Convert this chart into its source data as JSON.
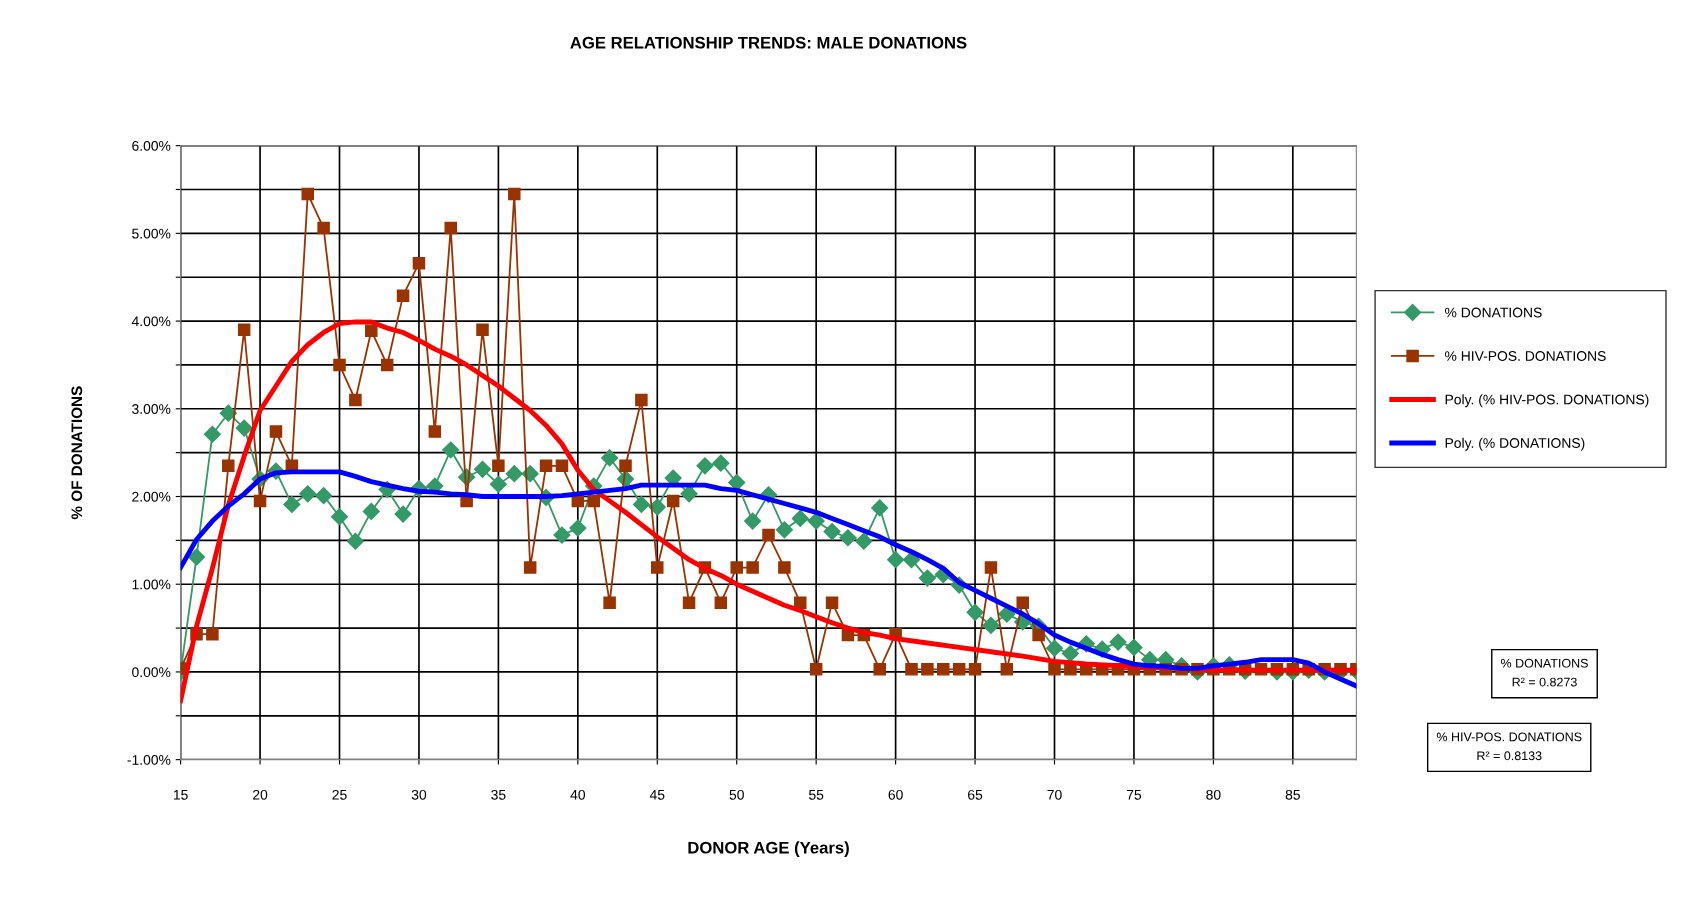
{
  "chart_data": {
    "type": "line",
    "title": "AGE RELATIONSHIP TRENDS: MALE DONATIONS",
    "xlabel": "DONOR AGE (Years)",
    "ylabel": "% OF DONATIONS",
    "x": [
      15,
      16,
      17,
      18,
      19,
      20,
      21,
      22,
      23,
      24,
      25,
      26,
      27,
      28,
      29,
      30,
      31,
      32,
      33,
      34,
      35,
      36,
      37,
      38,
      39,
      40,
      41,
      42,
      43,
      44,
      45,
      46,
      47,
      48,
      49,
      50,
      51,
      52,
      53,
      54,
      55,
      56,
      57,
      58,
      59,
      60,
      61,
      62,
      63,
      64,
      65,
      66,
      67,
      68,
      69,
      70,
      71,
      72,
      73,
      74,
      75,
      76,
      77,
      78,
      79,
      80,
      81,
      82,
      83,
      84,
      85,
      86,
      87,
      88,
      89
    ],
    "series": [
      {
        "name": "% DONATIONS",
        "color": "#339966",
        "marker": "diamond",
        "values": [
          0.0,
          1.31,
          2.71,
          2.95,
          2.78,
          2.2,
          2.29,
          1.91,
          2.03,
          2.01,
          1.77,
          1.49,
          1.83,
          2.08,
          1.8,
          2.09,
          2.12,
          2.53,
          2.22,
          2.31,
          2.14,
          2.26,
          2.26,
          1.99,
          1.56,
          1.64,
          2.12,
          2.44,
          2.2,
          1.91,
          1.88,
          2.21,
          2.03,
          2.35,
          2.38,
          2.16,
          1.72,
          2.02,
          1.62,
          1.75,
          1.72,
          1.6,
          1.53,
          1.49,
          1.87,
          1.28,
          1.28,
          1.07,
          1.11,
          0.99,
          0.68,
          0.53,
          0.66,
          0.57,
          0.52,
          0.27,
          0.21,
          0.32,
          0.26,
          0.34,
          0.28,
          0.14,
          0.14,
          0.07,
          0.0,
          0.07,
          0.08,
          0.01,
          null,
          0.0,
          0.0,
          0.02,
          0.0,
          0.0,
          0.01
        ]
      },
      {
        "name": "% HIV-POS. DONATIONS",
        "color": "#993300",
        "marker": "square",
        "values": [
          0.04,
          0.43,
          0.43,
          2.35,
          3.9,
          1.95,
          2.74,
          2.35,
          5.45,
          5.06,
          3.5,
          3.1,
          3.89,
          3.5,
          4.29,
          4.66,
          2.74,
          5.06,
          1.95,
          3.9,
          2.35,
          5.45,
          1.19,
          2.35,
          2.35,
          1.95,
          1.95,
          0.79,
          2.35,
          3.1,
          1.19,
          1.95,
          0.79,
          1.19,
          0.79,
          1.19,
          1.19,
          1.56,
          1.19,
          0.79,
          0.03,
          0.79,
          0.42,
          0.42,
          0.03,
          0.43,
          0.03,
          0.03,
          0.03,
          0.03,
          0.03,
          1.19,
          0.03,
          0.79,
          0.42,
          0.03,
          0.03,
          0.03,
          0.03,
          0.03,
          0.03,
          0.03,
          0.03,
          0.03,
          0.03,
          0.03,
          0.03,
          0.03,
          0.03,
          0.03,
          0.03,
          0.03,
          0.03,
          0.03,
          0.03
        ]
      },
      {
        "name": "Poly. (% HIV-POS. DONATIONS)",
        "color": "#ff0000",
        "marker": "none",
        "x": [
          15,
          16,
          17,
          18,
          19,
          20,
          21,
          22,
          23,
          24,
          25,
          26,
          27,
          28,
          29,
          30,
          31,
          32,
          33,
          34,
          35,
          36,
          37,
          38,
          39,
          40,
          41,
          42,
          43,
          44,
          45,
          46,
          47,
          48,
          49,
          50,
          51,
          52,
          53,
          54,
          55,
          56,
          57,
          58,
          59,
          60,
          62,
          64,
          66,
          68,
          70,
          72,
          75,
          80,
          85,
          89
        ],
        "values": [
          -0.33,
          0.52,
          1.18,
          1.9,
          2.46,
          2.98,
          3.26,
          3.54,
          3.73,
          3.87,
          3.97,
          3.99,
          3.99,
          3.92,
          3.87,
          3.78,
          3.68,
          3.6,
          3.5,
          3.38,
          3.26,
          3.12,
          2.98,
          2.81,
          2.6,
          2.3,
          2.08,
          1.95,
          1.82,
          1.68,
          1.54,
          1.41,
          1.28,
          1.18,
          1.1,
          1.0,
          0.92,
          0.84,
          0.76,
          0.7,
          0.63,
          0.56,
          0.5,
          0.45,
          0.42,
          0.38,
          0.33,
          0.28,
          0.23,
          0.18,
          0.12,
          0.09,
          0.06,
          0.02,
          0.02,
          0.02
        ]
      },
      {
        "name": "Poly. (% DONATIONS)",
        "color": "#0000ff",
        "marker": "none",
        "x": [
          15,
          16,
          17,
          18,
          19,
          20,
          21,
          22,
          25,
          26,
          27,
          28,
          29,
          30,
          31,
          32,
          33,
          34,
          38,
          39,
          40,
          41,
          43,
          44,
          48,
          49,
          50,
          51,
          52,
          53,
          54,
          55,
          56,
          57,
          58,
          59,
          60,
          61,
          62,
          63,
          64,
          65,
          66,
          67,
          68,
          69,
          70,
          71,
          72,
          73,
          74,
          75,
          76,
          77,
          78,
          79,
          80,
          81,
          82,
          83,
          85,
          86,
          87,
          88,
          89
        ],
        "values": [
          1.19,
          1.51,
          1.72,
          1.89,
          2.03,
          2.2,
          2.27,
          2.28,
          2.28,
          2.23,
          2.17,
          2.13,
          2.09,
          2.06,
          2.05,
          2.03,
          2.02,
          2.0,
          2.0,
          2.01,
          2.03,
          2.05,
          2.09,
          2.13,
          2.13,
          2.09,
          2.07,
          2.02,
          1.97,
          1.92,
          1.87,
          1.82,
          1.75,
          1.68,
          1.61,
          1.54,
          1.45,
          1.37,
          1.28,
          1.18,
          1.02,
          0.93,
          0.84,
          0.75,
          0.66,
          0.55,
          0.42,
          0.34,
          0.27,
          0.2,
          0.14,
          0.09,
          0.07,
          0.06,
          0.04,
          0.04,
          0.07,
          0.09,
          0.11,
          0.14,
          0.14,
          0.1,
          0.0,
          -0.08,
          -0.16
        ]
      }
    ],
    "xlim": [
      15,
      89
    ],
    "xticks": [
      15,
      20,
      25,
      30,
      35,
      40,
      45,
      50,
      55,
      60,
      65,
      70,
      75,
      80,
      85
    ],
    "ylim": [
      -1,
      6
    ],
    "yticks": [
      {
        "value": -1,
        "label": "-1.00%"
      },
      {
        "value": -0.5,
        "label": null
      },
      {
        "value": 0,
        "label": "0.00%"
      },
      {
        "value": 0.5,
        "label": null
      },
      {
        "value": 1,
        "label": "1.00%"
      },
      {
        "value": 1.5,
        "label": null
      },
      {
        "value": 2,
        "label": "2.00%"
      },
      {
        "value": 2.5,
        "label": null
      },
      {
        "value": 3,
        "label": "3.00%"
      },
      {
        "value": 3.5,
        "label": null
      },
      {
        "value": 4,
        "label": "4.00%"
      },
      {
        "value": 4.5,
        "label": null
      },
      {
        "value": 5,
        "label": "5.00%"
      },
      {
        "value": 5.5,
        "label": null
      },
      {
        "value": 6,
        "label": "6.00%"
      }
    ],
    "grid": true,
    "legend": "right",
    "annotations": [
      "% DONATIONS\nR² = 0.8273",
      "% HIV-POS. DONATIONS\nR² = 0.8133"
    ]
  }
}
